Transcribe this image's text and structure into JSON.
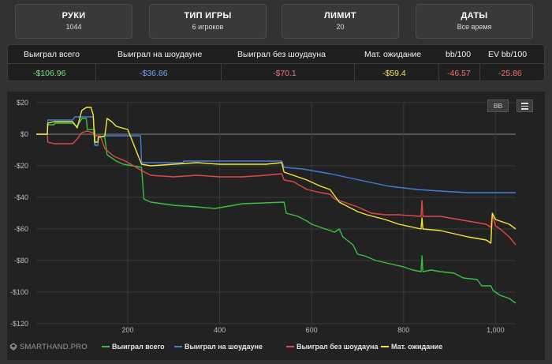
{
  "filters": [
    {
      "label": "РУКИ",
      "value": "1044"
    },
    {
      "label": "ТИП ИГРЫ",
      "value": "6 игроков"
    },
    {
      "label": "ЛИМИТ",
      "value": "20"
    },
    {
      "label": "ДАТЫ",
      "value": "Все время"
    }
  ],
  "stats": {
    "headers": [
      "Выиграл всего",
      "Выиграл на шоудауне",
      "Выиграл без шоудауна",
      "Мат. ожидание",
      "bb/100",
      "EV bb/100"
    ],
    "values": [
      "-$106.96",
      "-$36.86",
      "-$70.1",
      "-$59.4",
      "-46.57",
      "-25.86"
    ]
  },
  "toolbar": {
    "bb_label": "BB"
  },
  "brand": {
    "name": "SMARTHAND.PRO"
  },
  "colors": {
    "total": "#38c23e",
    "showdown": "#3f7fdc",
    "non_showdown": "#e2474a",
    "ev": "#f2e63a"
  },
  "chart_data": {
    "type": "line",
    "xlabel": "",
    "ylabel": "",
    "xlim": [
      1,
      1044
    ],
    "ylim": [
      -120,
      20
    ],
    "x_ticks": [
      200,
      400,
      600,
      800,
      1000
    ],
    "x_tick_labels": [
      "200",
      "400",
      "600",
      "800",
      "1,000"
    ],
    "y_ticks": [
      20,
      0,
      -20,
      -40,
      -60,
      -80,
      -100,
      -120
    ],
    "y_tick_labels": [
      "$20",
      "$0",
      "-$20",
      "-$40",
      "-$60",
      "-$80",
      "-$100",
      "-$120"
    ],
    "grid": true,
    "legend": "bottom",
    "series": [
      {
        "name": "Выиграл всего",
        "color": "#38c23e",
        "points": [
          [
            1,
            0
          ],
          [
            25,
            0
          ],
          [
            26,
            6
          ],
          [
            40,
            6
          ],
          [
            41,
            7
          ],
          [
            80,
            7
          ],
          [
            90,
            5
          ],
          [
            100,
            10
          ],
          [
            110,
            10
          ],
          [
            112,
            3
          ],
          [
            128,
            3
          ],
          [
            129,
            -7
          ],
          [
            135,
            -7
          ],
          [
            136,
            -1
          ],
          [
            150,
            -2
          ],
          [
            155,
            -13
          ],
          [
            165,
            -15
          ],
          [
            175,
            -17
          ],
          [
            190,
            -19
          ],
          [
            230,
            -21
          ],
          [
            235,
            -41
          ],
          [
            250,
            -43
          ],
          [
            300,
            -45
          ],
          [
            350,
            -46
          ],
          [
            390,
            -47
          ],
          [
            450,
            -44
          ],
          [
            540,
            -43
          ],
          [
            545,
            -50
          ],
          [
            570,
            -52
          ],
          [
            590,
            -55
          ],
          [
            600,
            -57
          ],
          [
            630,
            -60
          ],
          [
            650,
            -62
          ],
          [
            660,
            -60
          ],
          [
            668,
            -65
          ],
          [
            690,
            -70
          ],
          [
            700,
            -76
          ],
          [
            715,
            -77
          ],
          [
            740,
            -80
          ],
          [
            770,
            -82
          ],
          [
            800,
            -84
          ],
          [
            820,
            -86
          ],
          [
            838,
            -87
          ],
          [
            840,
            -77
          ],
          [
            842,
            -87
          ],
          [
            860,
            -86
          ],
          [
            880,
            -87
          ],
          [
            910,
            -88
          ],
          [
            930,
            -91
          ],
          [
            960,
            -92
          ],
          [
            970,
            -96
          ],
          [
            990,
            -96
          ],
          [
            995,
            -99
          ],
          [
            1010,
            -102
          ],
          [
            1030,
            -104
          ],
          [
            1044,
            -107
          ]
        ]
      },
      {
        "name": "Выиграл на шоудауне",
        "color": "#3f7fdc",
        "points": [
          [
            1,
            0
          ],
          [
            25,
            0
          ],
          [
            26,
            9
          ],
          [
            80,
            9
          ],
          [
            85,
            11
          ],
          [
            125,
            11
          ],
          [
            128,
            -7
          ],
          [
            135,
            -7
          ],
          [
            136,
            -2
          ],
          [
            150,
            -1
          ],
          [
            155,
            -1
          ],
          [
            175,
            -1
          ],
          [
            228,
            -1
          ],
          [
            230,
            -18
          ],
          [
            320,
            -18
          ],
          [
            322,
            -17
          ],
          [
            535,
            -17
          ],
          [
            540,
            -21
          ],
          [
            580,
            -22
          ],
          [
            620,
            -24
          ],
          [
            640,
            -25
          ],
          [
            720,
            -30
          ],
          [
            770,
            -33
          ],
          [
            830,
            -35
          ],
          [
            880,
            -36
          ],
          [
            940,
            -37
          ],
          [
            1044,
            -37
          ]
        ]
      },
      {
        "name": "Выиграл без шоудауна",
        "color": "#e2474a",
        "points": [
          [
            1,
            0
          ],
          [
            25,
            0
          ],
          [
            26,
            -5
          ],
          [
            40,
            -6
          ],
          [
            80,
            -6
          ],
          [
            90,
            -3
          ],
          [
            100,
            1
          ],
          [
            110,
            2
          ],
          [
            125,
            1
          ],
          [
            128,
            -1
          ],
          [
            140,
            -1
          ],
          [
            150,
            -9
          ],
          [
            170,
            -14
          ],
          [
            195,
            -17
          ],
          [
            230,
            -23
          ],
          [
            250,
            -26
          ],
          [
            300,
            -27
          ],
          [
            350,
            -26
          ],
          [
            400,
            -27
          ],
          [
            450,
            -27
          ],
          [
            500,
            -26
          ],
          [
            535,
            -25
          ],
          [
            540,
            -29
          ],
          [
            560,
            -30
          ],
          [
            590,
            -35
          ],
          [
            620,
            -37
          ],
          [
            640,
            -38
          ],
          [
            650,
            -41
          ],
          [
            670,
            -43
          ],
          [
            700,
            -46
          ],
          [
            730,
            -50
          ],
          [
            760,
            -51
          ],
          [
            790,
            -51
          ],
          [
            838,
            -52
          ],
          [
            840,
            -42
          ],
          [
            842,
            -52
          ],
          [
            880,
            -52
          ],
          [
            920,
            -54
          ],
          [
            960,
            -56
          ],
          [
            980,
            -57
          ],
          [
            990,
            -59
          ],
          [
            993,
            -51
          ],
          [
            1000,
            -58
          ],
          [
            1010,
            -60
          ],
          [
            1030,
            -65
          ],
          [
            1044,
            -70
          ]
        ]
      },
      {
        "name": "Мат. ожидание",
        "color": "#f2e63a",
        "points": [
          [
            1,
            0
          ],
          [
            25,
            0
          ],
          [
            26,
            7
          ],
          [
            40,
            8
          ],
          [
            60,
            8
          ],
          [
            80,
            8
          ],
          [
            90,
            4
          ],
          [
            100,
            15
          ],
          [
            110,
            17
          ],
          [
            120,
            17
          ],
          [
            125,
            12
          ],
          [
            128,
            -5
          ],
          [
            135,
            -5
          ],
          [
            136,
            -2
          ],
          [
            150,
            -1
          ],
          [
            155,
            10
          ],
          [
            165,
            8
          ],
          [
            175,
            5
          ],
          [
            200,
            3
          ],
          [
            230,
            -19
          ],
          [
            250,
            -20
          ],
          [
            300,
            -19
          ],
          [
            350,
            -18
          ],
          [
            400,
            -19
          ],
          [
            450,
            -19
          ],
          [
            500,
            -19
          ],
          [
            535,
            -18
          ],
          [
            540,
            -24
          ],
          [
            560,
            -26
          ],
          [
            590,
            -29
          ],
          [
            620,
            -33
          ],
          [
            640,
            -35
          ],
          [
            660,
            -43
          ],
          [
            700,
            -49
          ],
          [
            720,
            -51
          ],
          [
            760,
            -54
          ],
          [
            790,
            -57
          ],
          [
            838,
            -60
          ],
          [
            840,
            -53
          ],
          [
            842,
            -60
          ],
          [
            880,
            -61
          ],
          [
            910,
            -63
          ],
          [
            940,
            -65
          ],
          [
            960,
            -66
          ],
          [
            980,
            -67
          ],
          [
            990,
            -69
          ],
          [
            993,
            -50
          ],
          [
            1000,
            -54
          ],
          [
            1010,
            -55
          ],
          [
            1030,
            -57
          ],
          [
            1044,
            -60
          ]
        ]
      }
    ]
  }
}
